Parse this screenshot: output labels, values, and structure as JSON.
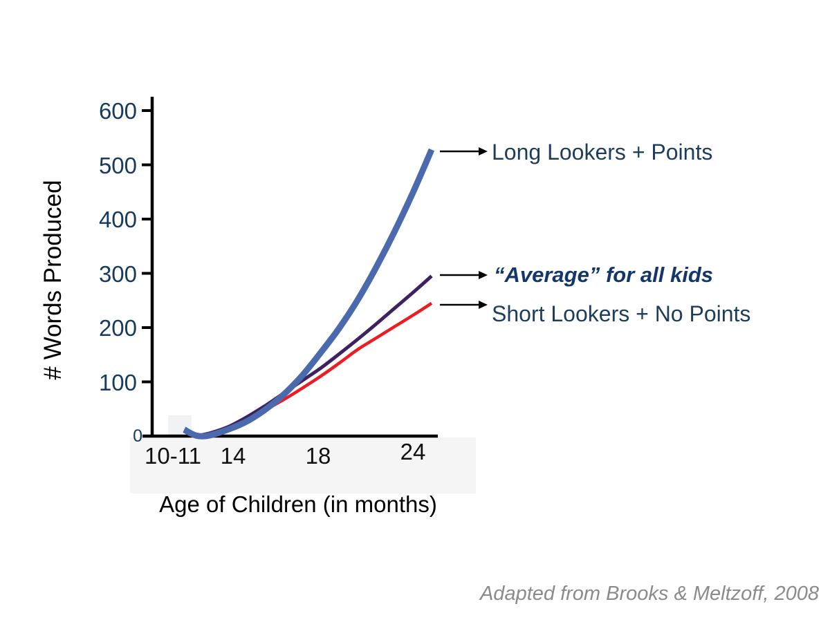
{
  "page": {
    "background": "#ffffff"
  },
  "chart_data": {
    "type": "line",
    "title": "",
    "xlabel": "Age of Children (in months)",
    "ylabel": "# Words Produced",
    "x_range_months": [
      10.5,
      24
    ],
    "ylim": [
      0,
      600
    ],
    "grid": false,
    "legend_position": "right-arrow-annotations",
    "y_tick_labels": [
      "600",
      "500",
      "400",
      "300",
      "200",
      "100",
      "0"
    ],
    "x_tick_labels": [
      "10-11",
      "14",
      "18",
      "24"
    ],
    "axis_color": "#000000",
    "tick_label_color": "#173a61",
    "series": [
      {
        "name": "Short Lookers + No Points",
        "color": "#ec1c24",
        "stroke_width": 4.5,
        "points": [
          [
            11.4,
            0
          ],
          [
            12,
            5
          ],
          [
            13,
            15
          ],
          [
            14,
            31
          ],
          [
            15,
            49
          ],
          [
            16,
            68
          ],
          [
            17,
            89
          ],
          [
            18,
            111
          ],
          [
            19,
            135
          ],
          [
            20,
            160
          ],
          [
            21,
            181
          ],
          [
            22,
            202
          ],
          [
            23,
            223
          ],
          [
            24,
            245
          ]
        ]
      },
      {
        "name": "“Average” for all kids",
        "color": "#3e2160",
        "stroke_width": 5,
        "points": [
          [
            11.2,
            0
          ],
          [
            12,
            6
          ],
          [
            13,
            18
          ],
          [
            14,
            36
          ],
          [
            15,
            57
          ],
          [
            16,
            80
          ],
          [
            17,
            103
          ],
          [
            18,
            126
          ],
          [
            19,
            152
          ],
          [
            20,
            179
          ],
          [
            21,
            207
          ],
          [
            22,
            236
          ],
          [
            23,
            265
          ],
          [
            24,
            295
          ]
        ]
      },
      {
        "name": "Long Lookers + Points",
        "color": "#4b69ad",
        "stroke_width": 9,
        "points": [
          [
            10.55,
            12
          ],
          [
            11.2,
            1
          ],
          [
            11.9,
            1
          ],
          [
            13,
            13
          ],
          [
            14,
            28
          ],
          [
            15,
            50
          ],
          [
            16,
            78
          ],
          [
            17,
            113
          ],
          [
            18,
            155
          ],
          [
            19,
            200
          ],
          [
            20,
            252
          ],
          [
            21,
            312
          ],
          [
            22,
            378
          ],
          [
            23,
            450
          ],
          [
            24,
            528
          ]
        ]
      }
    ],
    "annotations": [
      {
        "label": "Long Lookers + Points",
        "style": "regular",
        "color": "#1e3d5c"
      },
      {
        "label": "“Average” for all kids",
        "style": "bold-italic",
        "color": "#123768"
      },
      {
        "label": "Short Lookers + No Points",
        "style": "regular",
        "color": "#1e3d5c"
      }
    ]
  },
  "attribution": {
    "text": "Adapted from Brooks & Meltzoff, 2008"
  }
}
